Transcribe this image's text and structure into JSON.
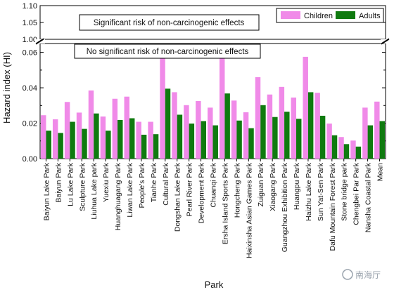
{
  "chart_data": {
    "type": "bar",
    "ylabel": "Hazard index (HI)",
    "xlabel": "Park",
    "ylim_lower": [
      0,
      0.065
    ],
    "ylim_upper": [
      1.0,
      1.1
    ],
    "yticks_lower": [
      "0.00",
      "0.02",
      "0.04",
      "0.06"
    ],
    "yticks_upper": [
      "1.00",
      "1.05",
      "1.10"
    ],
    "annotations": {
      "upper": "Significant risk of non-carcinogenic effects",
      "lower": "No significant risk of non-carcinogenic effects"
    },
    "legend_position": "top-right",
    "categories": [
      "Baiyun Lake Park",
      "Baiyun Park",
      "Lu Lake Park",
      "Sculpture Park",
      "Liuhua Lake park",
      "Yuexiu Park",
      "Huanghuagang Park",
      "Liwan Lake Park",
      "People's Park",
      "Tianhe Park",
      "Cultural Park",
      "Dongshan Lake Park",
      "Pearl River Park",
      "Development Park",
      "Chuanqi Park",
      "Ersha Island Sports Park",
      "Hongcheng Park",
      "Haixinsha Asian Games Park",
      "Zuiguan Park",
      "Xiaogang Park",
      "Guangzhou Exhibition Park",
      "Huangpu Park",
      "Haizhu Lake Park",
      "Sun Yat-Sen Park",
      "Dafu Mountain Forest Park",
      "Stone bridge park",
      "Chengbei Par Park",
      "Nansha Coastal Park",
      "Mean"
    ],
    "series": [
      {
        "name": "Children",
        "color": "#f08ae8",
        "values": [
          0.0245,
          0.0222,
          0.032,
          0.026,
          0.0385,
          0.0238,
          0.0338,
          0.035,
          0.0208,
          0.0208,
          0.0605,
          0.0375,
          0.0302,
          0.0325,
          0.0288,
          0.0565,
          0.0328,
          0.0262,
          0.046,
          0.0362,
          0.0405,
          0.0345,
          0.0575,
          0.0372,
          0.0198,
          0.0122,
          0.0102,
          0.0288,
          0.0322
        ]
      },
      {
        "name": "Adults",
        "color": "#0f7a0f",
        "values": [
          0.0158,
          0.0145,
          0.0208,
          0.0168,
          0.0255,
          0.0158,
          0.0218,
          0.0228,
          0.0135,
          0.0138,
          0.0395,
          0.0248,
          0.0198,
          0.0212,
          0.0188,
          0.0368,
          0.0215,
          0.0172,
          0.0302,
          0.0235,
          0.0265,
          0.0225,
          0.0375,
          0.0242,
          0.0132,
          0.0082,
          0.0068,
          0.0188,
          0.0212
        ]
      }
    ]
  },
  "watermark": "南海厅"
}
